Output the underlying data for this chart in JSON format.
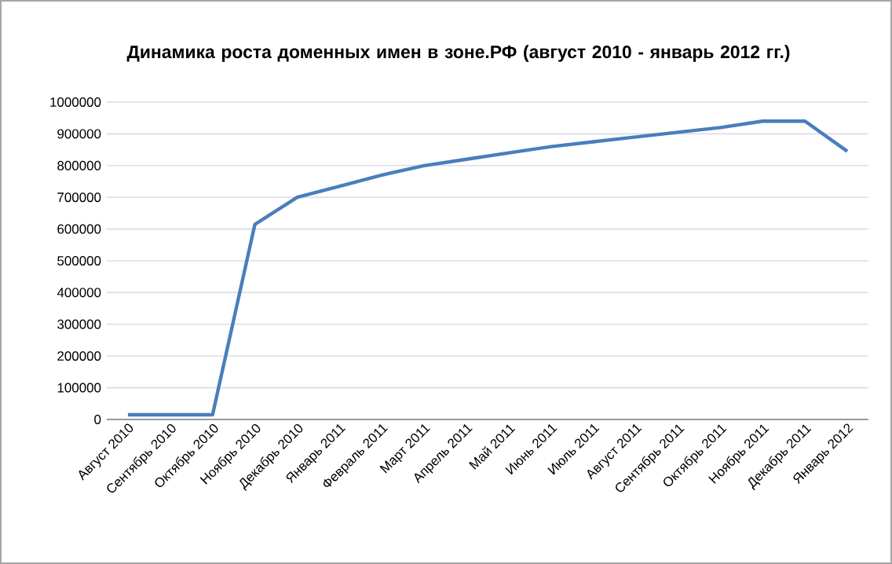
{
  "chart_data": {
    "type": "line",
    "title": "Динамика роста доменных имен в зоне.РФ (август 2010 - январь 2012 гг.)",
    "categories": [
      "Август 2010",
      "Сентябрь 2010",
      "Октябрь 2010",
      "Ноябрь 2010",
      "Декабрь 2010",
      "Январь 2011",
      "Февраль 2011",
      "Март 2011",
      "Апрель 2011",
      "Май 2011",
      "Июнь 2011",
      "Июль 2011",
      "Август 2011",
      "Сентябрь 2011",
      "Октябрь 2011",
      "Ноябрь 2011",
      "Декабрь 2011",
      "Январь 2012"
    ],
    "series": [
      {
        "color": "#4a7ebb",
        "values": [
          15000,
          15000,
          15000,
          615000,
          700000,
          735000,
          770000,
          800000,
          820000,
          840000,
          860000,
          875000,
          890000,
          905000,
          920000,
          940000,
          940000,
          845000
        ]
      }
    ],
    "ylim": [
      0,
      1000000
    ],
    "yticks": [
      0,
      100000,
      200000,
      300000,
      400000,
      500000,
      600000,
      700000,
      800000,
      900000,
      1000000
    ],
    "grid": "y",
    "marker": "none",
    "line_style": "solid"
  }
}
